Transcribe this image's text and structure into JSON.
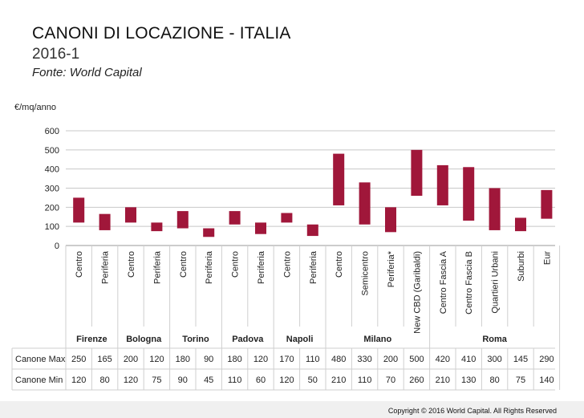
{
  "header": {
    "title": "CANONI DI LOCAZIONE - ITALIA",
    "subtitle": "2016-1",
    "source": "Fonte: World Capital",
    "unit_label": "€/mq/anno"
  },
  "footer": {
    "copyright": "Copyright © 2016 World Capital. All Rights Reserved"
  },
  "table": {
    "row_max_label": "Canone Max",
    "row_min_label": "Canone Min"
  },
  "chart_data": {
    "type": "bar",
    "subtype": "floating-range",
    "ylabel": "€/mq/anno",
    "ylim": [
      0,
      600
    ],
    "yticks": [
      0,
      100,
      200,
      300,
      400,
      500,
      600
    ],
    "grid": true,
    "bar_color": "#a0173a",
    "categories": [
      "Centro",
      "Periferia",
      "Centro",
      "Periferia",
      "Centro",
      "Periferia",
      "Centro",
      "Periferia",
      "Centro",
      "Periferia",
      "Centro",
      "Semicentro",
      "Periferia*",
      "New CBD (Garibaldi)",
      "Centro Fascia A",
      "Centro Fascia B",
      "Quartieri Urbani",
      "Suburbi",
      "Eur"
    ],
    "groups": [
      {
        "name": "Firenze",
        "count": 2
      },
      {
        "name": "Bologna",
        "count": 2
      },
      {
        "name": "Torino",
        "count": 2
      },
      {
        "name": "Padova",
        "count": 2
      },
      {
        "name": "Napoli",
        "count": 2
      },
      {
        "name": "Milano",
        "count": 4
      },
      {
        "name": "Roma",
        "count": 5
      }
    ],
    "series": [
      {
        "name": "Canone Max",
        "values": [
          250,
          165,
          200,
          120,
          180,
          90,
          180,
          120,
          170,
          110,
          480,
          330,
          200,
          500,
          420,
          410,
          300,
          145,
          290
        ]
      },
      {
        "name": "Canone Min",
        "values": [
          120,
          80,
          120,
          75,
          90,
          45,
          110,
          60,
          120,
          50,
          210,
          110,
          70,
          260,
          210,
          130,
          80,
          75,
          140
        ]
      }
    ]
  }
}
